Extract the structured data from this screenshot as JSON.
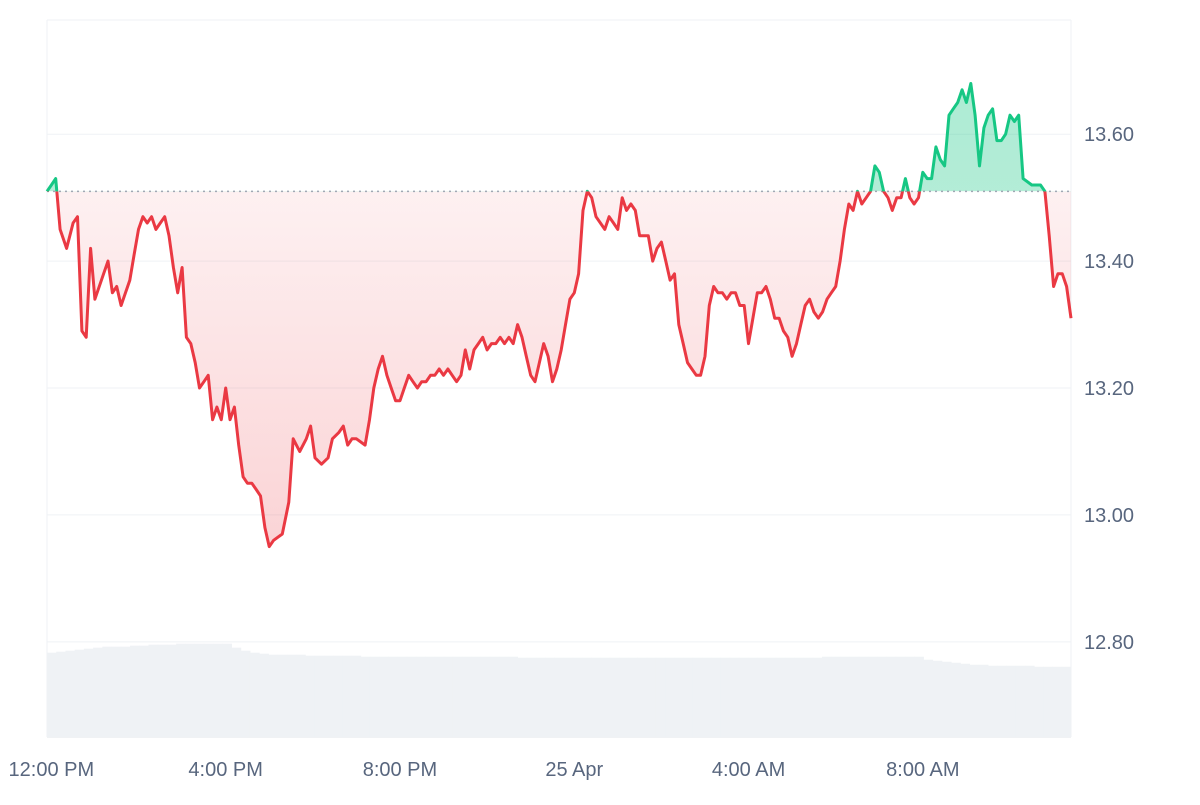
{
  "chart_data": {
    "type": "area",
    "baseline": 13.51,
    "ylim": [
      12.65,
      13.78
    ],
    "yticks": [
      12.8,
      13.0,
      13.2,
      13.4,
      13.6
    ],
    "ytick_labels": [
      "12.80",
      "13.00",
      "13.20",
      "13.40",
      "13.60"
    ],
    "xticks": [
      {
        "label": "12:00 PM",
        "at": 0.0
      },
      {
        "label": "4:00 PM",
        "at": 4.0
      },
      {
        "label": "8:00 PM",
        "at": 8.0
      },
      {
        "label": "25 Apr",
        "at": 12.0
      },
      {
        "label": "4:00 AM",
        "at": 16.0
      },
      {
        "label": "8:00 AM",
        "at": 20.0
      }
    ],
    "x_unit": "hours since 12:00 PM",
    "xlim": [
      -0.1,
      23.4
    ],
    "colors": {
      "above": "#16c784",
      "below": "#ea3943",
      "grid": "#eff2f5",
      "volume": "#eff2f5"
    },
    "series": [
      {
        "points": [
          [
            -0.1,
            13.51
          ],
          [
            0.0,
            13.52
          ],
          [
            0.1,
            13.53
          ],
          [
            0.2,
            13.45
          ],
          [
            0.35,
            13.42
          ],
          [
            0.5,
            13.46
          ],
          [
            0.6,
            13.47
          ],
          [
            0.7,
            13.29
          ],
          [
            0.8,
            13.28
          ],
          [
            0.9,
            13.42
          ],
          [
            1.0,
            13.34
          ],
          [
            1.2,
            13.38
          ],
          [
            1.3,
            13.4
          ],
          [
            1.4,
            13.35
          ],
          [
            1.5,
            13.36
          ],
          [
            1.6,
            13.33
          ],
          [
            1.8,
            13.37
          ],
          [
            1.9,
            13.41
          ],
          [
            2.0,
            13.45
          ],
          [
            2.1,
            13.47
          ],
          [
            2.2,
            13.46
          ],
          [
            2.3,
            13.47
          ],
          [
            2.4,
            13.45
          ],
          [
            2.5,
            13.46
          ],
          [
            2.6,
            13.47
          ],
          [
            2.7,
            13.44
          ],
          [
            2.8,
            13.39
          ],
          [
            2.9,
            13.35
          ],
          [
            3.0,
            13.39
          ],
          [
            3.1,
            13.28
          ],
          [
            3.2,
            13.27
          ],
          [
            3.3,
            13.24
          ],
          [
            3.4,
            13.2
          ],
          [
            3.5,
            13.21
          ],
          [
            3.6,
            13.22
          ],
          [
            3.7,
            13.15
          ],
          [
            3.8,
            13.17
          ],
          [
            3.9,
            13.15
          ],
          [
            4.0,
            13.2
          ],
          [
            4.1,
            13.15
          ],
          [
            4.2,
            13.17
          ],
          [
            4.3,
            13.11
          ],
          [
            4.4,
            13.06
          ],
          [
            4.5,
            13.05
          ],
          [
            4.6,
            13.05
          ],
          [
            4.7,
            13.04
          ],
          [
            4.8,
            13.03
          ],
          [
            4.9,
            12.98
          ],
          [
            5.0,
            12.95
          ],
          [
            5.1,
            12.96
          ],
          [
            5.3,
            12.97
          ],
          [
            5.45,
            13.02
          ],
          [
            5.55,
            13.12
          ],
          [
            5.7,
            13.1
          ],
          [
            5.85,
            13.12
          ],
          [
            5.95,
            13.14
          ],
          [
            6.05,
            13.09
          ],
          [
            6.2,
            13.08
          ],
          [
            6.35,
            13.09
          ],
          [
            6.45,
            13.12
          ],
          [
            6.6,
            13.13
          ],
          [
            6.7,
            13.14
          ],
          [
            6.8,
            13.11
          ],
          [
            6.9,
            13.12
          ],
          [
            7.0,
            13.12
          ],
          [
            7.2,
            13.11
          ],
          [
            7.3,
            13.15
          ],
          [
            7.4,
            13.2
          ],
          [
            7.5,
            13.23
          ],
          [
            7.6,
            13.25
          ],
          [
            7.7,
            13.22
          ],
          [
            7.8,
            13.2
          ],
          [
            7.9,
            13.18
          ],
          [
            8.0,
            13.18
          ],
          [
            8.1,
            13.2
          ],
          [
            8.2,
            13.22
          ],
          [
            8.3,
            13.21
          ],
          [
            8.4,
            13.2
          ],
          [
            8.5,
            13.21
          ],
          [
            8.6,
            13.21
          ],
          [
            8.7,
            13.22
          ],
          [
            8.8,
            13.22
          ],
          [
            8.9,
            13.23
          ],
          [
            9.0,
            13.22
          ],
          [
            9.1,
            13.23
          ],
          [
            9.2,
            13.22
          ],
          [
            9.3,
            13.21
          ],
          [
            9.4,
            13.22
          ],
          [
            9.5,
            13.26
          ],
          [
            9.6,
            13.23
          ],
          [
            9.7,
            13.26
          ],
          [
            9.8,
            13.27
          ],
          [
            9.9,
            13.28
          ],
          [
            10.0,
            13.26
          ],
          [
            10.1,
            13.27
          ],
          [
            10.2,
            13.27
          ],
          [
            10.3,
            13.28
          ],
          [
            10.4,
            13.27
          ],
          [
            10.5,
            13.28
          ],
          [
            10.6,
            13.27
          ],
          [
            10.7,
            13.3
          ],
          [
            10.8,
            13.28
          ],
          [
            10.9,
            13.25
          ],
          [
            11.0,
            13.22
          ],
          [
            11.1,
            13.21
          ],
          [
            11.2,
            13.24
          ],
          [
            11.3,
            13.27
          ],
          [
            11.4,
            13.25
          ],
          [
            11.5,
            13.21
          ],
          [
            11.6,
            13.23
          ],
          [
            11.7,
            13.26
          ],
          [
            11.8,
            13.3
          ],
          [
            11.9,
            13.34
          ],
          [
            12.0,
            13.35
          ],
          [
            12.1,
            13.38
          ],
          [
            12.2,
            13.48
          ],
          [
            12.3,
            13.51
          ],
          [
            12.4,
            13.5
          ],
          [
            12.5,
            13.47
          ],
          [
            12.6,
            13.46
          ],
          [
            12.7,
            13.45
          ],
          [
            12.8,
            13.47
          ],
          [
            12.9,
            13.46
          ],
          [
            13.0,
            13.45
          ],
          [
            13.1,
            13.5
          ],
          [
            13.2,
            13.48
          ],
          [
            13.3,
            13.49
          ],
          [
            13.4,
            13.48
          ],
          [
            13.5,
            13.44
          ],
          [
            13.6,
            13.44
          ],
          [
            13.7,
            13.44
          ],
          [
            13.8,
            13.4
          ],
          [
            13.9,
            13.42
          ],
          [
            14.0,
            13.43
          ],
          [
            14.1,
            13.4
          ],
          [
            14.2,
            13.37
          ],
          [
            14.3,
            13.38
          ],
          [
            14.4,
            13.3
          ],
          [
            14.5,
            13.27
          ],
          [
            14.6,
            13.24
          ],
          [
            14.7,
            13.23
          ],
          [
            14.8,
            13.22
          ],
          [
            14.9,
            13.22
          ],
          [
            15.0,
            13.25
          ],
          [
            15.1,
            13.33
          ],
          [
            15.2,
            13.36
          ],
          [
            15.3,
            13.35
          ],
          [
            15.4,
            13.35
          ],
          [
            15.5,
            13.34
          ],
          [
            15.6,
            13.35
          ],
          [
            15.7,
            13.35
          ],
          [
            15.8,
            13.33
          ],
          [
            15.9,
            13.33
          ],
          [
            16.0,
            13.27
          ],
          [
            16.1,
            13.31
          ],
          [
            16.2,
            13.35
          ],
          [
            16.3,
            13.35
          ],
          [
            16.4,
            13.36
          ],
          [
            16.5,
            13.34
          ],
          [
            16.6,
            13.31
          ],
          [
            16.7,
            13.31
          ],
          [
            16.8,
            13.29
          ],
          [
            16.9,
            13.28
          ],
          [
            17.0,
            13.25
          ],
          [
            17.1,
            13.27
          ],
          [
            17.2,
            13.3
          ],
          [
            17.3,
            13.33
          ],
          [
            17.4,
            13.34
          ],
          [
            17.5,
            13.32
          ],
          [
            17.6,
            13.31
          ],
          [
            17.7,
            13.32
          ],
          [
            17.8,
            13.34
          ],
          [
            17.9,
            13.35
          ],
          [
            18.0,
            13.36
          ],
          [
            18.1,
            13.4
          ],
          [
            18.2,
            13.45
          ],
          [
            18.3,
            13.49
          ],
          [
            18.4,
            13.48
          ],
          [
            18.5,
            13.51
          ],
          [
            18.6,
            13.49
          ],
          [
            18.7,
            13.5
          ],
          [
            18.8,
            13.51
          ],
          [
            18.9,
            13.55
          ],
          [
            19.0,
            13.54
          ],
          [
            19.1,
            13.51
          ],
          [
            19.2,
            13.5
          ],
          [
            19.3,
            13.48
          ],
          [
            19.4,
            13.5
          ],
          [
            19.5,
            13.5
          ],
          [
            19.6,
            13.53
          ],
          [
            19.7,
            13.5
          ],
          [
            19.8,
            13.49
          ],
          [
            19.9,
            13.5
          ],
          [
            20.0,
            13.54
          ],
          [
            20.1,
            13.53
          ],
          [
            20.2,
            13.53
          ],
          [
            20.3,
            13.58
          ],
          [
            20.4,
            13.56
          ],
          [
            20.5,
            13.55
          ],
          [
            20.6,
            13.63
          ],
          [
            20.7,
            13.64
          ],
          [
            20.8,
            13.65
          ],
          [
            20.9,
            13.67
          ],
          [
            21.0,
            13.65
          ],
          [
            21.1,
            13.68
          ],
          [
            21.2,
            13.63
          ],
          [
            21.3,
            13.55
          ],
          [
            21.4,
            13.61
          ],
          [
            21.5,
            13.63
          ],
          [
            21.6,
            13.64
          ],
          [
            21.7,
            13.59
          ],
          [
            21.8,
            13.59
          ],
          [
            21.9,
            13.6
          ],
          [
            22.0,
            13.63
          ],
          [
            22.1,
            13.62
          ],
          [
            22.2,
            13.63
          ],
          [
            22.3,
            13.53
          ],
          [
            22.5,
            13.52
          ],
          [
            22.6,
            13.52
          ],
          [
            22.7,
            13.52
          ],
          [
            22.8,
            13.51
          ],
          [
            22.9,
            13.44
          ],
          [
            23.0,
            13.36
          ],
          [
            23.1,
            13.38
          ],
          [
            23.2,
            13.38
          ],
          [
            23.3,
            13.36
          ],
          [
            23.4,
            13.31
          ]
        ]
      }
    ],
    "volume_levels": [
      0.64,
      0.65,
      0.66,
      0.67,
      0.68,
      0.69,
      0.7,
      0.7,
      0.7,
      0.71,
      0.71,
      0.72,
      0.72,
      0.72,
      0.73,
      0.73,
      0.73,
      0.73,
      0.73,
      0.73,
      0.69,
      0.66,
      0.64,
      0.63,
      0.62,
      0.62,
      0.62,
      0.62,
      0.61,
      0.61,
      0.61,
      0.61,
      0.61,
      0.61,
      0.6,
      0.6,
      0.6,
      0.6,
      0.6,
      0.6,
      0.6,
      0.6,
      0.6,
      0.6,
      0.6,
      0.6,
      0.6,
      0.6,
      0.6,
      0.6,
      0.6,
      0.59,
      0.59,
      0.59,
      0.59,
      0.59,
      0.59,
      0.59,
      0.59,
      0.59,
      0.59,
      0.59,
      0.59,
      0.59,
      0.59,
      0.59,
      0.59,
      0.59,
      0.59,
      0.59,
      0.59,
      0.59,
      0.59,
      0.59,
      0.59,
      0.59,
      0.59,
      0.59,
      0.59,
      0.59,
      0.59,
      0.59,
      0.59,
      0.59,
      0.6,
      0.6,
      0.6,
      0.6,
      0.6,
      0.6,
      0.6,
      0.6,
      0.6,
      0.6,
      0.6,
      0.57,
      0.56,
      0.55,
      0.54,
      0.53,
      0.52,
      0.52,
      0.51,
      0.51,
      0.51,
      0.51,
      0.51,
      0.5,
      0.5,
      0.5,
      0.5
    ]
  }
}
